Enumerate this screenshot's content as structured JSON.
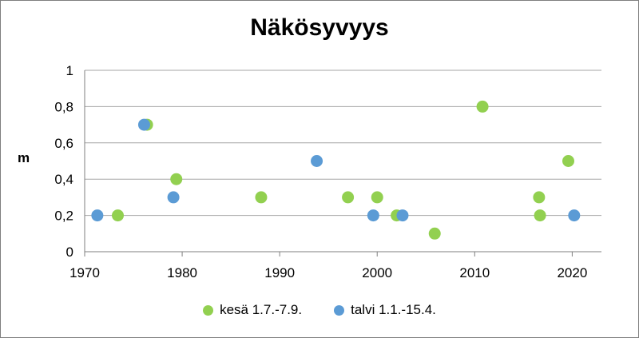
{
  "chart_data": {
    "type": "scatter",
    "title": "Näkösyvyys",
    "ylabel": "m",
    "xlabel": "",
    "xlim": [
      1970,
      2023
    ],
    "ylim": [
      0,
      1
    ],
    "xticks": [
      1970,
      1980,
      1990,
      2000,
      2010,
      2020
    ],
    "yticks": [
      "0",
      "0,2",
      "0,4",
      "0,6",
      "0,8",
      "1"
    ],
    "ytick_values": [
      0,
      0.2,
      0.4,
      0.6,
      0.8,
      1
    ],
    "grid": "horizontal",
    "legend_position": "bottom",
    "series": [
      {
        "name": "kesä 1.7.-7.9.",
        "color": "#92d050",
        "points": [
          {
            "x": 1973.4,
            "y": 0.2
          },
          {
            "x": 1976.4,
            "y": 0.7
          },
          {
            "x": 1979.4,
            "y": 0.4
          },
          {
            "x": 1988.1,
            "y": 0.3
          },
          {
            "x": 1997.0,
            "y": 0.3
          },
          {
            "x": 2000.0,
            "y": 0.3
          },
          {
            "x": 2002.0,
            "y": 0.2
          },
          {
            "x": 2005.9,
            "y": 0.1
          },
          {
            "x": 2010.8,
            "y": 0.8
          },
          {
            "x": 2016.6,
            "y": 0.3
          },
          {
            "x": 2016.7,
            "y": 0.2
          },
          {
            "x": 2019.6,
            "y": 0.5
          }
        ]
      },
      {
        "name": "talvi 1.1.-15.4.",
        "color": "#5b9bd5",
        "points": [
          {
            "x": 1971.3,
            "y": 0.2
          },
          {
            "x": 1976.1,
            "y": 0.7
          },
          {
            "x": 1979.1,
            "y": 0.3
          },
          {
            "x": 1993.8,
            "y": 0.5
          },
          {
            "x": 1999.6,
            "y": 0.2
          },
          {
            "x": 2002.6,
            "y": 0.2
          },
          {
            "x": 2020.2,
            "y": 0.2
          }
        ]
      }
    ]
  }
}
